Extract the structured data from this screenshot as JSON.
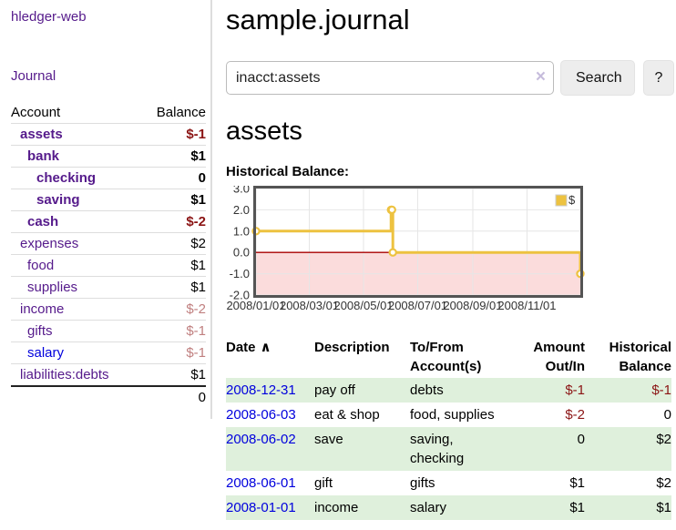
{
  "app": {
    "title": "hledger-web"
  },
  "sidebar": {
    "journal_link": "Journal",
    "accounts_header": {
      "account": "Account",
      "balance": "Balance"
    },
    "accounts": [
      {
        "name": "assets",
        "indent": 1,
        "strong": true,
        "link": "purple",
        "balance": "$-1",
        "bal_style": "neg-strong"
      },
      {
        "name": "bank",
        "indent": 2,
        "strong": true,
        "link": "purple",
        "balance": "$1",
        "bal_style": "pos-strong"
      },
      {
        "name": "checking",
        "indent": 3,
        "strong": true,
        "link": "purple",
        "balance": "0",
        "bal_style": "pos-strong"
      },
      {
        "name": "saving",
        "indent": 3,
        "strong": true,
        "link": "purple",
        "balance": "$1",
        "bal_style": "pos-strong"
      },
      {
        "name": "cash",
        "indent": 2,
        "strong": true,
        "link": "purple",
        "balance": "$-2",
        "bal_style": "neg-strong"
      },
      {
        "name": "expenses",
        "indent": 1,
        "strong": false,
        "link": "purple",
        "balance": "$2",
        "bal_style": "pos"
      },
      {
        "name": "food",
        "indent": 2,
        "strong": false,
        "link": "purple",
        "balance": "$1",
        "bal_style": "pos"
      },
      {
        "name": "supplies",
        "indent": 2,
        "strong": false,
        "link": "purple",
        "balance": "$1",
        "bal_style": "pos"
      },
      {
        "name": "income",
        "indent": 1,
        "strong": false,
        "link": "purple",
        "balance": "$-2",
        "bal_style": "neg-faint"
      },
      {
        "name": "gifts",
        "indent": 2,
        "strong": false,
        "link": "purple",
        "balance": "$-1",
        "bal_style": "neg-faint"
      },
      {
        "name": "salary",
        "indent": 2,
        "strong": false,
        "link": "blue",
        "balance": "$-1",
        "bal_style": "neg-faint"
      },
      {
        "name": "liabilities:debts",
        "indent": 1,
        "strong": false,
        "link": "purple",
        "balance": "$1",
        "bal_style": "pos"
      }
    ],
    "total": "0"
  },
  "header": {
    "title": "sample.journal"
  },
  "search": {
    "value": "inacct:assets",
    "clear_icon": "×",
    "button": "Search",
    "help_button": "?"
  },
  "account_page": {
    "heading": "assets",
    "chart_label": "Historical Balance:"
  },
  "chart_data": {
    "type": "line",
    "step": true,
    "title": "Historical Balance",
    "xlabel": "",
    "ylabel": "",
    "ylim": [
      -2,
      3
    ],
    "xlim_days": [
      0,
      365
    ],
    "grid": true,
    "legend": {
      "label": "$",
      "position": "top-right"
    },
    "colors": {
      "series": "#edc240",
      "marker_fill": "#ffffff",
      "grid": "#e6e6e6",
      "border": "#545454",
      "zero_line": "#aa0000",
      "negative_fill": "#fbdcdc",
      "tick_text": "#333333",
      "legend_box_border": "#cccccc"
    },
    "y_ticks": [
      {
        "label": "3.0",
        "value": 3
      },
      {
        "label": "2.0",
        "value": 2
      },
      {
        "label": "1.0",
        "value": 1
      },
      {
        "label": "0.0",
        "value": 0
      },
      {
        "label": "-1.0",
        "value": -1
      },
      {
        "label": "-2.0",
        "value": -2
      }
    ],
    "x_ticks": [
      {
        "label": "2008/01/01",
        "day": 0
      },
      {
        "label": "2008/03/01",
        "day": 60
      },
      {
        "label": "2008/05/01",
        "day": 121
      },
      {
        "label": "2008/07/01",
        "day": 182
      },
      {
        "label": "2008/09/01",
        "day": 244
      },
      {
        "label": "2008/11/01",
        "day": 305
      }
    ],
    "series": [
      {
        "name": "$",
        "points": [
          {
            "date": "2008-01-01",
            "day": 0,
            "value": 1
          },
          {
            "date": "2008-06-01",
            "day": 152,
            "value": 2
          },
          {
            "date": "2008-06-02",
            "day": 153,
            "value": 2
          },
          {
            "date": "2008-06-03",
            "day": 154,
            "value": 0
          },
          {
            "date": "2008-12-31",
            "day": 365,
            "value": -1
          }
        ]
      }
    ]
  },
  "transactions": {
    "headers": {
      "date": "Date",
      "sort_icon": "∧",
      "description": "Description",
      "tofrom": "To/From\nAccount(s)",
      "amount": "Amount\nOut/In",
      "balance": "Historical\nBalance"
    },
    "rows": [
      {
        "date": "2008-12-31",
        "description": "pay off",
        "tofrom": "debts",
        "amount": "$-1",
        "amount_neg": true,
        "balance": "$-1",
        "balance_neg": true,
        "shaded": true
      },
      {
        "date": "2008-06-03",
        "description": "eat & shop",
        "tofrom": "food, supplies",
        "amount": "$-2",
        "amount_neg": true,
        "balance": "0",
        "balance_neg": false,
        "shaded": false
      },
      {
        "date": "2008-06-02",
        "description": "save",
        "tofrom": "saving, checking",
        "amount": "0",
        "amount_neg": false,
        "balance": "$2",
        "balance_neg": false,
        "shaded": true
      },
      {
        "date": "2008-06-01",
        "description": "gift",
        "tofrom": "gifts",
        "amount": "$1",
        "amount_neg": false,
        "balance": "$2",
        "balance_neg": false,
        "shaded": false
      },
      {
        "date": "2008-01-01",
        "description": "income",
        "tofrom": "salary",
        "amount": "$1",
        "amount_neg": false,
        "balance": "$1",
        "balance_neg": false,
        "shaded": true
      }
    ]
  }
}
